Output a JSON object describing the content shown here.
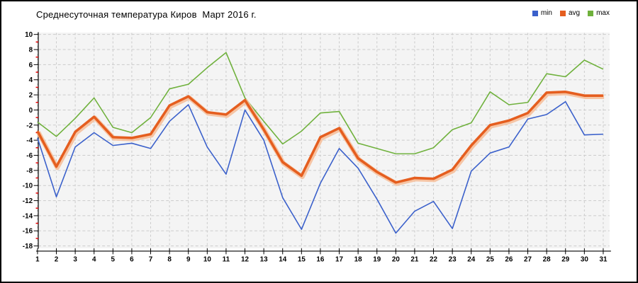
{
  "title": "Среднесуточная температура Киров  Март 2016 г.",
  "legend": [
    {
      "label": "min",
      "color": "#3a60cb"
    },
    {
      "label": "avg",
      "color": "#e55e1f"
    },
    {
      "label": "max",
      "color": "#6fb13c"
    }
  ],
  "chart_data": {
    "type": "line",
    "title": "Среднесуточная температура Киров  Март 2016 г.",
    "xlabel": "",
    "ylabel": "",
    "ylim": [
      -18,
      10
    ],
    "ytick_step": 2,
    "grid": true,
    "legend_position": "top-right",
    "plot_bg": "#f4f4f4",
    "grid_color": "#cbcbcb",
    "minor_tick_color": "#e60000",
    "x": [
      1,
      2,
      3,
      4,
      5,
      6,
      7,
      8,
      9,
      10,
      11,
      12,
      13,
      14,
      15,
      16,
      17,
      18,
      19,
      20,
      21,
      22,
      23,
      24,
      25,
      26,
      27,
      28,
      29,
      30,
      31
    ],
    "yticks": [
      10,
      8,
      6,
      4,
      2,
      0,
      -2,
      -4,
      -6,
      -8,
      -10,
      -12,
      -14,
      -16,
      -18
    ],
    "series": [
      {
        "name": "min",
        "color": "#3a60cb",
        "values": [
          -3.7,
          -11.5,
          -4.9,
          -3.0,
          -4.7,
          -4.4,
          -5.1,
          -1.5,
          0.7,
          -4.9,
          -8.5,
          0.0,
          -4.0,
          -11.6,
          -15.8,
          -9.7,
          -5.1,
          -7.7,
          -11.8,
          -16.3,
          -13.4,
          -12.1,
          -15.7,
          -8.1,
          -5.7,
          -4.9,
          -1.2,
          -0.6,
          1.1,
          -3.3,
          -3.2
        ]
      },
      {
        "name": "avg",
        "color": "#e55e1f",
        "values": [
          -2.8,
          -7.5,
          -2.9,
          -0.9,
          -3.6,
          -3.7,
          -3.2,
          0.6,
          1.8,
          -0.3,
          -0.6,
          1.3,
          -2.6,
          -6.9,
          -8.7,
          -3.6,
          -2.4,
          -6.4,
          -8.2,
          -9.6,
          -9.0,
          -9.1,
          -7.9,
          -4.7,
          -2.0,
          -1.4,
          -0.4,
          2.3,
          2.4,
          1.9,
          1.9
        ]
      },
      {
        "name": "max",
        "color": "#6fb13c",
        "values": [
          -1.6,
          -3.5,
          -1.1,
          1.6,
          -2.3,
          -3.0,
          -1.0,
          2.8,
          3.4,
          5.6,
          7.6,
          1.6,
          -1.5,
          -4.5,
          -2.8,
          -0.4,
          -0.2,
          -4.4,
          -5.1,
          -5.8,
          -5.8,
          -5.0,
          -2.6,
          -1.7,
          2.4,
          0.7,
          1.0,
          4.8,
          4.4,
          6.6,
          5.4
        ]
      }
    ]
  }
}
